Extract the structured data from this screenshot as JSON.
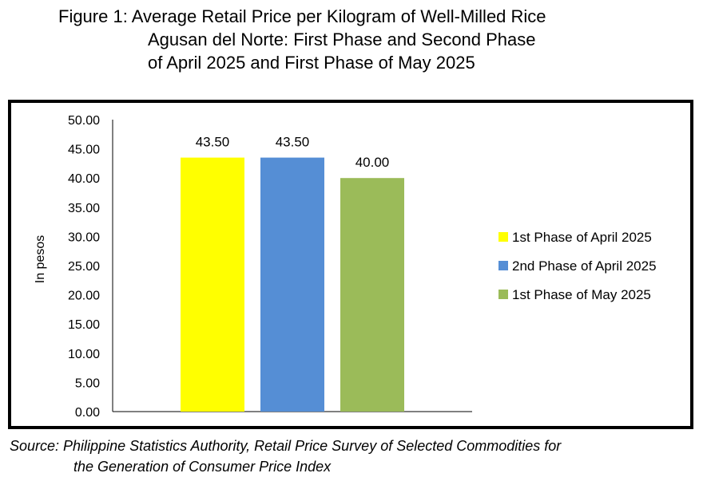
{
  "title": {
    "line1": "Figure 1: Average Retail Price per Kilogram of Well-Milled Rice",
    "line2": "Agusan del Norte: First Phase and Second Phase",
    "line3": "of April 2025 and First Phase of May 2025"
  },
  "source": {
    "line1": "Source: Philippine Statistics Authority, Retail Price Survey of Selected Commodities for",
    "line2": "the Generation of Consumer Price Index"
  },
  "chart_data": {
    "type": "bar",
    "title": "Figure 1: Average Retail Price per Kilogram of Well-Milled Rice Agusan del Norte: First Phase and Second Phase of April 2025 and First Phase of May 2025",
    "ylabel": "In pesos",
    "xlabel": "",
    "ylim": [
      0,
      50
    ],
    "yticks": [
      "0.00",
      "5.00",
      "10.00",
      "15.00",
      "20.00",
      "25.00",
      "30.00",
      "35.00",
      "40.00",
      "45.00",
      "50.00"
    ],
    "grid": false,
    "legend_position": "right",
    "series": [
      {
        "name": "1st Phase of April 2025",
        "value": 43.5,
        "label": "43.50",
        "color": "#ffff00"
      },
      {
        "name": "2nd Phase of April 2025",
        "value": 43.5,
        "label": "43.50",
        "color": "#558ed5"
      },
      {
        "name": "1st Phase of May 2025",
        "value": 40.0,
        "label": "40.00",
        "color": "#9bbb59"
      }
    ]
  }
}
